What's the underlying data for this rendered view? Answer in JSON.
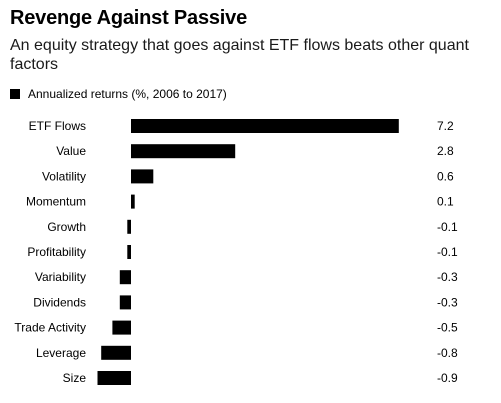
{
  "title": "Revenge Against Passive",
  "subtitle": "An equity strategy that goes against ETF flows beats other quant factors",
  "legend": "Annualized returns (%, 2006 to 2017)",
  "chart_data": {
    "type": "bar",
    "orientation": "horizontal",
    "categories": [
      "ETF Flows",
      "Value",
      "Volatility",
      "Momentum",
      "Growth",
      "Profitability",
      "Variability",
      "Dividends",
      "Trade Activity",
      "Leverage",
      "Size"
    ],
    "values": [
      7.2,
      2.8,
      0.6,
      0.1,
      -0.1,
      -0.1,
      -0.3,
      -0.3,
      -0.5,
      -0.8,
      -0.9
    ],
    "value_labels": [
      "7.2",
      "2.8",
      "0.6",
      "0.1",
      "-0.1",
      "-0.1",
      "-0.3",
      "-0.3",
      "-0.5",
      "-0.8",
      "-0.9"
    ],
    "series": [
      {
        "name": "Annualized returns (%, 2006 to 2017)",
        "values": [
          7.2,
          2.8,
          0.6,
          0.1,
          -0.1,
          -0.1,
          -0.3,
          -0.3,
          -0.5,
          -0.8,
          -0.9
        ]
      }
    ],
    "title": "Revenge Against Passive",
    "xlabel": "",
    "ylabel": "",
    "xlim": [
      -0.9,
      7.2
    ],
    "grid": false,
    "legend_position": "top-left",
    "bar_color": "#000000"
  }
}
